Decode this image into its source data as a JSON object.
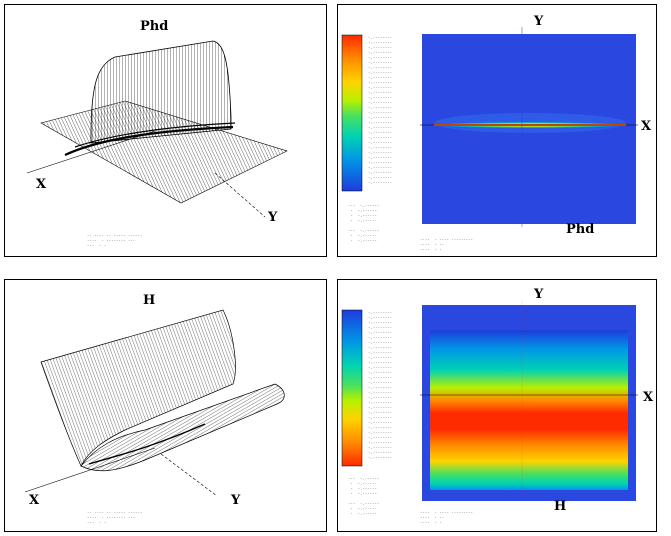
{
  "panels": {
    "top_left": {
      "title": "Phd",
      "x_label": "X",
      "y_label": "Y"
    },
    "top_right": {
      "title": "Phd",
      "x_label": "X",
      "y_label": "Y"
    },
    "bottom_left": {
      "title": "H",
      "x_label": "X",
      "y_label": "Y"
    },
    "bottom_right": {
      "title": "H",
      "x_label": "X",
      "y_label": "Y"
    }
  },
  "colors": {
    "contour_background": "#2a47e0",
    "scale_top_right": [
      "#ff2a00",
      "#ff8a00",
      "#ffd200",
      "#b7f000",
      "#46e060",
      "#00d2b4",
      "#0096e6",
      "#1e3cdc"
    ],
    "scale_bottom_right": [
      "#1e3cdc",
      "#0096e6",
      "#00d2b4",
      "#46e060",
      "#b7f000",
      "#ffd200",
      "#ff8a00",
      "#ff2a00"
    ]
  }
}
